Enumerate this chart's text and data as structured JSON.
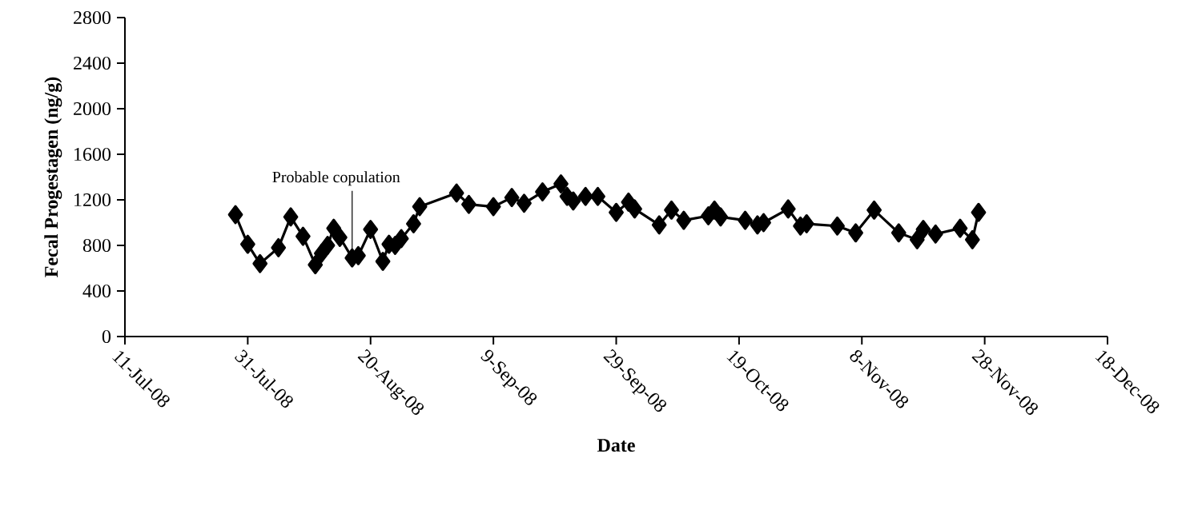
{
  "chart_data": {
    "type": "line",
    "xlabel": "Date",
    "ylabel": "Fecal Progestagen (ng/g)",
    "x": [
      "2008-07-29",
      "2008-07-31",
      "2008-08-02",
      "2008-08-05",
      "2008-08-07",
      "2008-08-09",
      "2008-08-11",
      "2008-08-12",
      "2008-08-13",
      "2008-08-14",
      "2008-08-15",
      "2008-08-17",
      "2008-08-18",
      "2008-08-20",
      "2008-08-22",
      "2008-08-23",
      "2008-08-24",
      "2008-08-25",
      "2008-08-27",
      "2008-08-28",
      "2008-09-03",
      "2008-09-05",
      "2008-09-09",
      "2008-09-12",
      "2008-09-14",
      "2008-09-17",
      "2008-09-20",
      "2008-09-21",
      "2008-09-22",
      "2008-09-24",
      "2008-09-26",
      "2008-09-29",
      "2008-10-01",
      "2008-10-02",
      "2008-10-06",
      "2008-10-08",
      "2008-10-10",
      "2008-10-14",
      "2008-10-15",
      "2008-10-16",
      "2008-10-20",
      "2008-10-22",
      "2008-10-23",
      "2008-10-27",
      "2008-10-29",
      "2008-10-30",
      "2008-11-04",
      "2008-11-07",
      "2008-11-10",
      "2008-11-14",
      "2008-11-17",
      "2008-11-18",
      "2008-11-20",
      "2008-11-24",
      "2008-11-26",
      "2008-11-27"
    ],
    "series": [
      {
        "color": "#000000",
        "values": [
          1070,
          810,
          640,
          780,
          1050,
          880,
          630,
          730,
          800,
          950,
          870,
          690,
          710,
          940,
          660,
          810,
          800,
          860,
          990,
          1140,
          1260,
          1160,
          1140,
          1220,
          1170,
          1270,
          1340,
          1230,
          1190,
          1230,
          1230,
          1090,
          1180,
          1120,
          980,
          1110,
          1020,
          1060,
          1110,
          1050,
          1020,
          980,
          1000,
          1120,
          970,
          990,
          970,
          910,
          1110,
          910,
          850,
          940,
          900,
          950,
          850,
          1090
        ]
      }
    ],
    "xlim": [
      "2008-07-11",
      "2008-12-18"
    ],
    "xticks": [
      {
        "value": "2008-07-11",
        "label": "11-Jul-08"
      },
      {
        "value": "2008-07-31",
        "label": "31-Jul-08"
      },
      {
        "value": "2008-08-20",
        "label": "20-Aug-08"
      },
      {
        "value": "2008-09-09",
        "label": "9-Sep-08"
      },
      {
        "value": "2008-09-29",
        "label": "29-Sep-08"
      },
      {
        "value": "2008-10-19",
        "label": "19-Oct-08"
      },
      {
        "value": "2008-11-08",
        "label": "8-Nov-08"
      },
      {
        "value": "2008-11-28",
        "label": "28-Nov-08"
      },
      {
        "value": "2008-12-18",
        "label": "18-Dec-08"
      }
    ],
    "ylim": [
      0,
      2800
    ],
    "yticks": [
      0,
      400,
      800,
      1200,
      1600,
      2000,
      2400,
      2800
    ],
    "annotations": [
      {
        "text": "Probable copulation",
        "x": "2008-08-17",
        "y": 690
      }
    ],
    "marker": "diamond",
    "line_style": "solid",
    "grid": false
  }
}
